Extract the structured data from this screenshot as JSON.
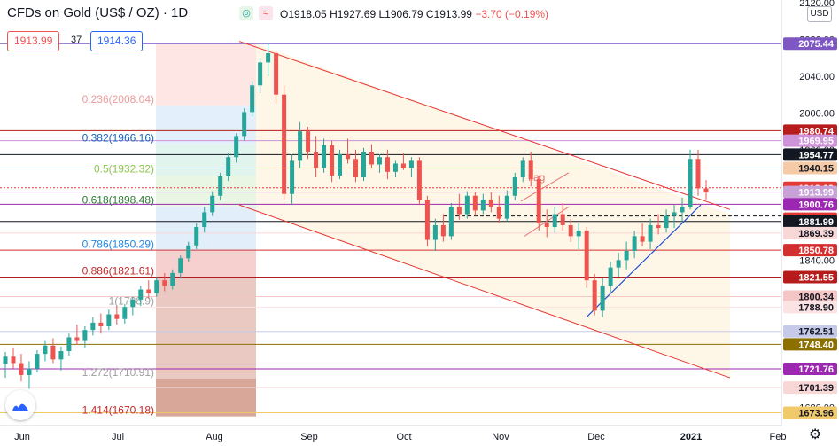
{
  "header": {
    "title": "CFDs on Gold (US$ / OZ) · 1D",
    "ohlc": {
      "o_label": "O",
      "o": "1918.05",
      "h_label": "H",
      "h": "1927.69",
      "l_label": "L",
      "l": "1906.79",
      "c_label": "C",
      "c": "1913.99",
      "change": "−3.70 (−0.19%)"
    },
    "sell_price": "1913.99",
    "spread": "37",
    "buy_price": "1914.36",
    "currency_button": "USD",
    "colors": {
      "bid": "#ef5350",
      "ask": "#2962ff",
      "up": "#26a69a",
      "down": "#ef5350"
    }
  },
  "chart_data": {
    "type": "candlestick",
    "title": "CFDs on Gold (US$ / OZ)",
    "timeframe": "1D",
    "y_range": [
      1660,
      2120
    ],
    "x_labels": [
      "Jun",
      "Jul",
      "Aug",
      "Sep",
      "Oct",
      "Nov",
      "Dec",
      "2021",
      "Feb"
    ],
    "y_ticks": [
      "2120.00",
      "2080.00",
      "2040.00",
      "2000.00",
      "1960.00",
      "1920.00",
      "1880.00",
      "1840.00",
      "1800.00",
      "1760.00",
      "1720.00",
      "1680.00"
    ],
    "price_labels": [
      {
        "value": "2075.44",
        "color": "#7e57c2"
      },
      {
        "value": "1980.74",
        "color": "#b71c1c"
      },
      {
        "value": "1969.95",
        "color": "#ce93d8"
      },
      {
        "value": "1954.77",
        "color": "#131722"
      },
      {
        "value": "1940.15",
        "color": "#f5cba7"
      },
      {
        "value": "1918.68",
        "color": "#e53935"
      },
      {
        "value": "1913.99",
        "color": "#c8a2d6"
      },
      {
        "value": "56:39",
        "color": "#e53935"
      },
      {
        "value": "1900.76",
        "color": "#9c27b0"
      },
      {
        "value": "1881.99",
        "color": "#131722"
      },
      {
        "value": "1869.39",
        "color": "#f8d7d7"
      },
      {
        "value": "1850.78",
        "color": "#d32f2f"
      },
      {
        "value": "1821.55",
        "color": "#b71c1c"
      },
      {
        "value": "1800.34",
        "color": "#f5c6c6"
      },
      {
        "value": "1788.90",
        "color": "#fbe3e3"
      },
      {
        "value": "1762.51",
        "color": "#c5cae9"
      },
      {
        "value": "1748.40",
        "color": "#8d6e00"
      },
      {
        "value": "1721.76",
        "color": "#9c27b0"
      },
      {
        "value": "1701.39",
        "color": "#f8d7d7"
      },
      {
        "value": "1673.96",
        "color": "#f0c96b"
      }
    ],
    "fibonacci_labels": [
      {
        "label": "0.236(2008.04)",
        "value": 2008.04,
        "color": "#ef9a9a"
      },
      {
        "label": "0.382(1966.16)",
        "value": 1966.16,
        "color": "#1565c0"
      },
      {
        "label": "0.5(1932.32)",
        "value": 1932.32,
        "color": "#8bc34a"
      },
      {
        "label": "0.618(1898.48)",
        "value": 1898.48,
        "color": "#2e7d32"
      },
      {
        "label": "0.786(1850.29)",
        "value": 1850.29,
        "color": "#1e88e5"
      },
      {
        "label": "0.886(1821.61)",
        "value": 1821.61,
        "color": "#c62828"
      },
      {
        "label": "1(1788.9)",
        "value": 1788.9,
        "color": "#9e9e9e"
      },
      {
        "label": "1.272(1710.91)",
        "value": 1710.91,
        "color": "#9e9e9e"
      },
      {
        "label": "1.414(1670.18)",
        "value": 1670.18,
        "color": "#c62828"
      }
    ],
    "annotations": [
      {
        "text": "flag"
      }
    ],
    "candles_approx": [
      [
        1727,
        1740,
        1712,
        1735
      ],
      [
        1735,
        1745,
        1722,
        1728
      ],
      [
        1728,
        1738,
        1708,
        1715
      ],
      [
        1715,
        1730,
        1700,
        1722
      ],
      [
        1722,
        1742,
        1718,
        1738
      ],
      [
        1738,
        1752,
        1730,
        1747
      ],
      [
        1747,
        1755,
        1728,
        1732
      ],
      [
        1732,
        1746,
        1720,
        1741
      ],
      [
        1741,
        1760,
        1736,
        1756
      ],
      [
        1756,
        1770,
        1748,
        1752
      ],
      [
        1752,
        1768,
        1745,
        1764
      ],
      [
        1764,
        1778,
        1758,
        1772
      ],
      [
        1772,
        1782,
        1760,
        1768
      ],
      [
        1768,
        1786,
        1764,
        1781
      ],
      [
        1781,
        1790,
        1770,
        1776
      ],
      [
        1776,
        1792,
        1771,
        1789
      ],
      [
        1789,
        1800,
        1780,
        1797
      ],
      [
        1797,
        1812,
        1790,
        1808
      ],
      [
        1808,
        1818,
        1798,
        1804
      ],
      [
        1804,
        1822,
        1800,
        1818
      ],
      [
        1818,
        1826,
        1806,
        1812
      ],
      [
        1812,
        1830,
        1808,
        1826
      ],
      [
        1826,
        1845,
        1820,
        1842
      ],
      [
        1842,
        1860,
        1838,
        1856
      ],
      [
        1856,
        1880,
        1852,
        1876
      ],
      [
        1876,
        1898,
        1870,
        1892
      ],
      [
        1892,
        1915,
        1888,
        1910
      ],
      [
        1910,
        1935,
        1905,
        1931
      ],
      [
        1931,
        1956,
        1926,
        1952
      ],
      [
        1952,
        1978,
        1946,
        1975
      ],
      [
        1975,
        2005,
        1970,
        2001
      ],
      [
        2001,
        2035,
        1996,
        2030
      ],
      [
        2030,
        2060,
        2022,
        2055
      ],
      [
        2055,
        2075,
        2040,
        2065
      ],
      [
        2065,
        2068,
        2010,
        2020
      ],
      [
        2020,
        2030,
        1905,
        1912
      ],
      [
        1912,
        1955,
        1900,
        1948
      ],
      [
        1948,
        1990,
        1940,
        1980
      ],
      [
        1980,
        1985,
        1950,
        1958
      ],
      [
        1958,
        1975,
        1930,
        1940
      ],
      [
        1940,
        1972,
        1935,
        1965
      ],
      [
        1965,
        1970,
        1925,
        1932
      ],
      [
        1932,
        1960,
        1928,
        1955
      ],
      [
        1955,
        1972,
        1945,
        1950
      ],
      [
        1950,
        1960,
        1925,
        1930
      ],
      [
        1930,
        1962,
        1926,
        1958
      ],
      [
        1958,
        1966,
        1940,
        1944
      ],
      [
        1944,
        1955,
        1935,
        1952
      ],
      [
        1952,
        1960,
        1928,
        1936
      ],
      [
        1936,
        1948,
        1930,
        1945
      ],
      [
        1945,
        1957,
        1938,
        1940
      ],
      [
        1940,
        1952,
        1930,
        1948
      ],
      [
        1948,
        1952,
        1900,
        1905
      ],
      [
        1905,
        1910,
        1855,
        1862
      ],
      [
        1862,
        1885,
        1850,
        1878
      ],
      [
        1878,
        1890,
        1860,
        1866
      ],
      [
        1866,
        1902,
        1862,
        1898
      ],
      [
        1898,
        1912,
        1884,
        1890
      ],
      [
        1890,
        1915,
        1885,
        1910
      ],
      [
        1910,
        1914,
        1888,
        1894
      ],
      [
        1894,
        1912,
        1890,
        1906
      ],
      [
        1906,
        1914,
        1892,
        1898
      ],
      [
        1898,
        1910,
        1880,
        1885
      ],
      [
        1885,
        1916,
        1882,
        1910
      ],
      [
        1910,
        1935,
        1905,
        1930
      ],
      [
        1930,
        1952,
        1925,
        1948
      ],
      [
        1948,
        1958,
        1920,
        1928
      ],
      [
        1928,
        1932,
        1872,
        1880
      ],
      [
        1880,
        1895,
        1865,
        1876
      ],
      [
        1876,
        1898,
        1870,
        1890
      ],
      [
        1890,
        1902,
        1872,
        1878
      ],
      [
        1878,
        1885,
        1860,
        1866
      ],
      [
        1866,
        1880,
        1852,
        1872
      ],
      [
        1872,
        1876,
        1810,
        1818
      ],
      [
        1818,
        1825,
        1780,
        1785
      ],
      [
        1785,
        1820,
        1778,
        1812
      ],
      [
        1812,
        1838,
        1805,
        1832
      ],
      [
        1832,
        1848,
        1822,
        1840
      ],
      [
        1840,
        1860,
        1830,
        1850
      ],
      [
        1850,
        1872,
        1842,
        1866
      ],
      [
        1866,
        1880,
        1855,
        1860
      ],
      [
        1860,
        1885,
        1852,
        1878
      ],
      [
        1878,
        1890,
        1868,
        1875
      ],
      [
        1875,
        1895,
        1870,
        1888
      ],
      [
        1888,
        1900,
        1875,
        1892
      ],
      [
        1892,
        1908,
        1882,
        1898
      ],
      [
        1898,
        1960,
        1895,
        1950
      ],
      [
        1950,
        1960,
        1910,
        1918
      ],
      [
        1918,
        1927,
        1906,
        1914
      ]
    ]
  },
  "controls": {
    "settings_icon": "gear-icon",
    "logo_icon": "tradingview-logo-icon"
  }
}
